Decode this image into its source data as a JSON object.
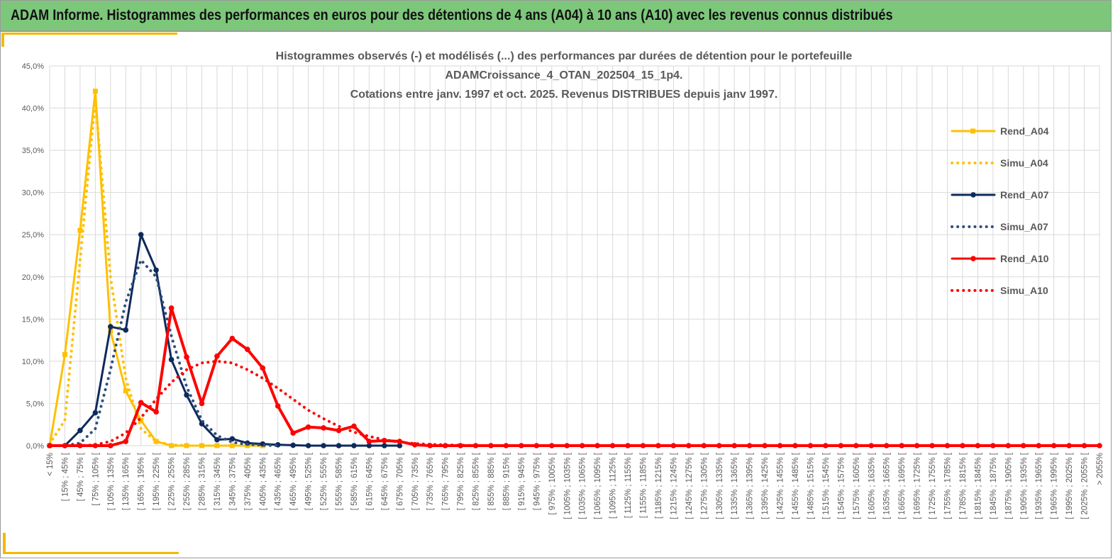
{
  "header": {
    "title": "ADAM Informe. Histogrammes des performances en euros pour des détentions de 4 ans (A04) à 10 ans (A10) avec les revenus connus distribués"
  },
  "chart_data": {
    "type": "line",
    "title": [
      "Histogrammes observés (-) et modélisés (...) des performances par durées de détention pour le portefeuille",
      "ADAMCroissance_4_OTAN_202504_15_1p4.",
      "Cotations entre janv. 1997 et oct. 2025. Revenus DISTRIBUES depuis janv 1997."
    ],
    "xlabel": "",
    "ylabel": "",
    "ylim": [
      0,
      45
    ],
    "yticks": [
      "0,0%",
      "5,0%",
      "10,0%",
      "15,0%",
      "20,0%",
      "25,0%",
      "30,0%",
      "35,0%",
      "40,0%",
      "45,0%"
    ],
    "grid": true,
    "legend_position": "right",
    "categories": [
      "< 15%",
      "[ 15% ; 45% [",
      "[ 45% ; 75% [",
      "[ 75% ; 105% [",
      "[ 105% ; 135% [",
      "[ 135% ; 165% [",
      "[ 165% ; 195% [",
      "[ 195% ; 225% [",
      "[ 225% ; 255% [",
      "[ 255% ; 285% [",
      "[ 285% ; 315% [",
      "[ 315% ; 345% [",
      "[ 345% ; 375% [",
      "[ 375% ; 405% [",
      "[ 405% ; 435% [",
      "[ 435% ; 465% [",
      "[ 465% ; 495% [",
      "[ 495% ; 525% [",
      "[ 525% ; 555% [",
      "[ 555% ; 585% [",
      "[ 585% ; 615% [",
      "[ 615% ; 645% [",
      "[ 645% ; 675% [",
      "[ 675% ; 705% [",
      "[ 705% ; 735% [",
      "[ 735% ; 765% [",
      "[ 765% ; 795% [",
      "[ 795% ; 825% [",
      "[ 825% ; 855% [",
      "[ 855% ; 885% [",
      "[ 885% ; 915% [",
      "[ 915% ; 945% [",
      "[ 945% ; 975% [",
      "[ 975% ; 1005% [",
      "[ 1005% ; 1035% [",
      "[ 1035% ; 1065% [",
      "[ 1065% ; 1095% [",
      "[ 1095% ; 1125% [",
      "[ 1125% ; 1155% [",
      "[ 1155% ; 1185% [",
      "[ 1185% ; 1215% [",
      "[ 1215% ; 1245% [",
      "[ 1245% ; 1275% [",
      "[ 1275% ; 1305% [",
      "[ 1305% ; 1335% [",
      "[ 1335% ; 1365% [",
      "[ 1365% ; 1395% [",
      "[ 1395% ; 1425% [",
      "[ 1425% ; 1455% [",
      "[ 1455% ; 1485% [",
      "[ 1485% ; 1515% [",
      "[ 1515% ; 1545% [",
      "[ 1545% ; 1575% [",
      "[ 1575% ; 1605% [",
      "[ 1605% ; 1635% [",
      "[ 1635% ; 1665% [",
      "[ 1665% ; 1695% [",
      "[ 1695% ; 1725% [",
      "[ 1725% ; 1755% [",
      "[ 1755% ; 1785% [",
      "[ 1785% ; 1815% [",
      "[ 1815% ; 1845% [",
      "[ 1845% ; 1875% [",
      "[ 1875% ; 1905% [",
      "[ 1905% ; 1935% [",
      "[ 1935% ; 1965% [",
      "[ 1965% ; 1995% [",
      "[ 1995% ; 2025% [",
      "[ 2025% ; 2055% [",
      "> 2055%"
    ],
    "series": [
      {
        "name": "Rend_A04",
        "style": "solid",
        "marker": "square",
        "color": "#ffc000",
        "values": [
          0,
          10.8,
          25.5,
          42.0,
          13.6,
          6.5,
          3.0,
          0.5,
          0,
          0,
          0,
          0,
          0,
          0,
          0,
          null,
          null,
          null,
          null,
          null,
          null,
          null,
          null,
          null,
          null,
          null,
          null,
          null,
          null,
          null,
          null,
          null,
          null,
          null,
          null,
          null,
          null,
          null,
          null,
          null,
          null,
          null,
          null,
          null,
          null,
          null,
          null,
          null,
          null,
          null,
          null,
          null,
          null,
          null,
          null,
          null,
          null,
          null,
          null,
          null,
          null,
          null,
          null,
          null,
          null,
          null,
          null,
          null,
          null,
          null
        ]
      },
      {
        "name": "Simu_A04",
        "style": "dotted",
        "marker": "none",
        "color": "#ffc000",
        "values": [
          0.2,
          3.0,
          22.0,
          41.0,
          20.0,
          8.0,
          2.0,
          0.5,
          0.1,
          0,
          null,
          null,
          null,
          null,
          null,
          null,
          null,
          null,
          null,
          null,
          null,
          null,
          null,
          null,
          null,
          null,
          null,
          null,
          null,
          null,
          null,
          null,
          null,
          null,
          null,
          null,
          null,
          null,
          null,
          null,
          null,
          null,
          null,
          null,
          null,
          null,
          null,
          null,
          null,
          null,
          null,
          null,
          null,
          null,
          null,
          null,
          null,
          null,
          null,
          null,
          null,
          null,
          null,
          null,
          null,
          null,
          null,
          null,
          null,
          null
        ]
      },
      {
        "name": "Rend_A07",
        "style": "solid",
        "marker": "circle",
        "color": "#0e2a5c",
        "values": [
          0,
          0,
          1.8,
          3.9,
          14.1,
          13.7,
          25.0,
          20.8,
          10.2,
          6.0,
          2.6,
          0.7,
          0.8,
          0.3,
          0.2,
          0.1,
          0.05,
          0,
          0,
          0,
          0,
          0,
          0,
          0,
          null,
          null,
          null,
          null,
          null,
          null,
          null,
          null,
          null,
          null,
          null,
          null,
          null,
          null,
          null,
          null,
          null,
          null,
          null,
          null,
          null,
          null,
          null,
          null,
          null,
          null,
          null,
          null,
          null,
          null,
          null,
          null,
          null,
          null,
          null,
          null,
          null,
          null,
          null,
          null,
          null,
          null,
          null,
          null,
          null,
          null
        ]
      },
      {
        "name": "Simu_A07",
        "style": "dotted",
        "marker": "none",
        "color": "#2e4f7e",
        "values": [
          0,
          0,
          0.3,
          2.0,
          9.0,
          17.0,
          22.0,
          20.0,
          13.0,
          7.0,
          3.0,
          1.2,
          0.4,
          0.15,
          0.05,
          0,
          null,
          null,
          null,
          null,
          null,
          null,
          null,
          null,
          null,
          null,
          null,
          null,
          null,
          null,
          null,
          null,
          null,
          null,
          null,
          null,
          null,
          null,
          null,
          null,
          null,
          null,
          null,
          null,
          null,
          null,
          null,
          null,
          null,
          null,
          null,
          null,
          null,
          null,
          null,
          null,
          null,
          null,
          null,
          null,
          null,
          null,
          null,
          null,
          null,
          null,
          null,
          null,
          null,
          null
        ]
      },
      {
        "name": "Rend_A10",
        "style": "solid",
        "marker": "circle",
        "color": "#ff0000",
        "values": [
          0,
          0,
          0,
          0,
          0,
          0.5,
          5.1,
          4.0,
          16.3,
          10.5,
          5.0,
          10.6,
          12.7,
          11.4,
          9.2,
          4.7,
          1.5,
          2.2,
          2.1,
          1.8,
          2.3,
          0.5,
          0.6,
          0.5,
          0.1,
          0,
          0,
          0,
          0,
          0,
          0,
          0,
          0,
          0,
          0,
          0,
          0,
          0,
          0,
          0,
          0,
          0,
          0,
          0,
          0,
          0,
          0,
          0,
          0,
          0,
          0,
          0,
          0,
          0,
          0,
          0,
          0,
          0,
          0,
          0,
          0,
          0,
          0,
          0,
          0,
          0,
          0,
          0,
          0,
          0
        ]
      },
      {
        "name": "Simu_A10",
        "style": "dotted",
        "marker": "none",
        "color": "#ff0000",
        "values": [
          0,
          0,
          0,
          0.1,
          0.5,
          1.5,
          3.3,
          5.5,
          7.5,
          9.0,
          9.8,
          10.0,
          9.8,
          9.0,
          8.0,
          6.8,
          5.5,
          4.2,
          3.2,
          2.3,
          1.6,
          1.1,
          0.7,
          0.4,
          0.25,
          0.15,
          0.1,
          0.05,
          0,
          null,
          null,
          null,
          null,
          null,
          null,
          null,
          null,
          null,
          null,
          null,
          null,
          null,
          null,
          null,
          null,
          null,
          null,
          null,
          null,
          null,
          null,
          null,
          null,
          null,
          null,
          null,
          null,
          null,
          null,
          null,
          null,
          null,
          null,
          null,
          null,
          null,
          null,
          null,
          null,
          null
        ]
      }
    ]
  }
}
